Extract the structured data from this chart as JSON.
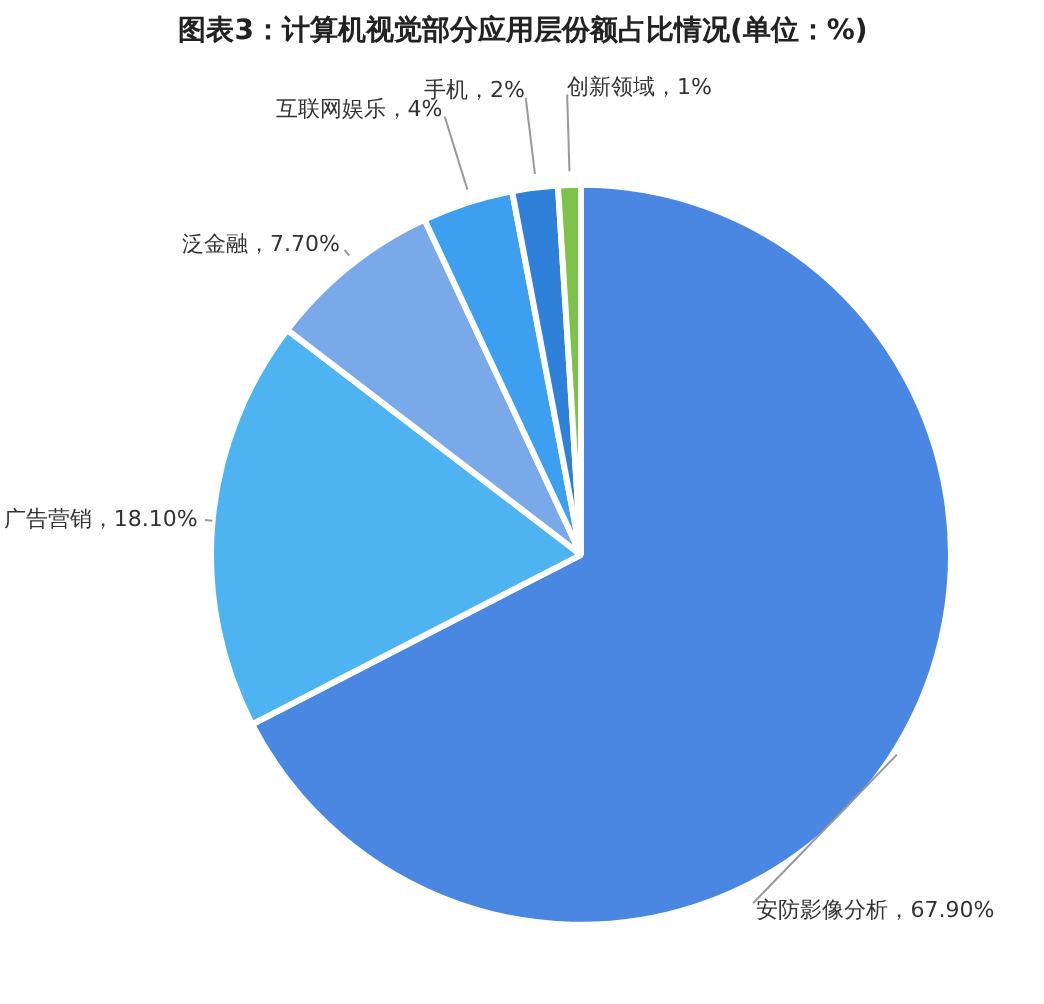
{
  "chart_data": {
    "type": "pie",
    "title": "图表3：计算机视觉部分应用层份额占比情况(单位：%)",
    "categories": [
      "安防影像分析",
      "广告营销",
      "泛金融",
      "互联网娱乐",
      "手机",
      "创新领域"
    ],
    "values": [
      67.9,
      18.1,
      7.7,
      4,
      2,
      1
    ],
    "value_labels": [
      "67.90%",
      "18.10%",
      "7.70%",
      "4%",
      "2%",
      "1%"
    ],
    "colors": [
      "#4a87e2",
      "#4db3f1",
      "#7aa9ea",
      "#3c9ff0",
      "#2f80d8",
      "#7dc24a"
    ]
  }
}
